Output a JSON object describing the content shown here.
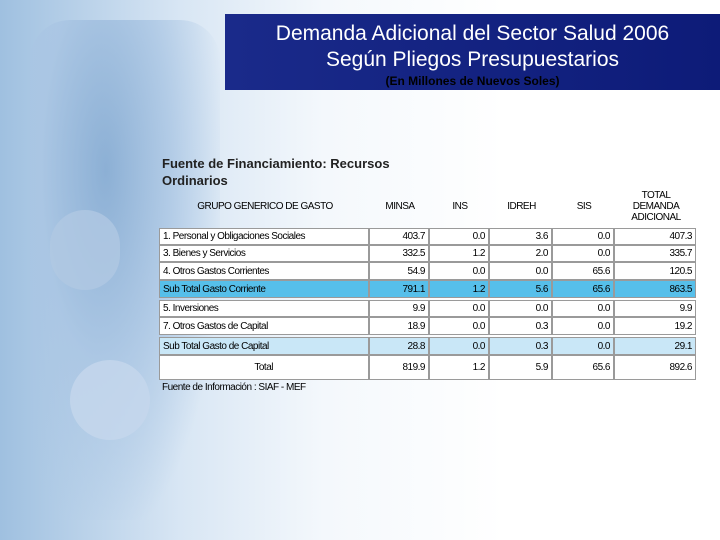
{
  "header": {
    "title_line1": "Demanda Adicional del Sector Salud 2006",
    "title_line2": "Según Pliegos Presupuestarios",
    "subtitle": "(En Millones de Nuevos Soles)"
  },
  "source_heading": "Fuente de Financiamiento: Recursos Ordinarios",
  "table": {
    "columns": [
      "GRUPO GENERICO DE GASTO",
      "MINSA",
      "INS",
      "IDREH",
      "SIS",
      "TOTAL DEMANDA ADICIONAL"
    ],
    "rows": [
      [
        "1. Personal y Obligaciones Sociales",
        "403.7",
        "0.0",
        "3.6",
        "0.0",
        "407.3"
      ],
      [
        "3. Bienes y Servicios",
        "332.5",
        "1.2",
        "2.0",
        "0.0",
        "335.7"
      ],
      [
        "4. Otros Gastos Corrientes",
        "54.9",
        "0.0",
        "0.0",
        "65.6",
        "120.5"
      ],
      [
        "Sub Total Gasto Corriente",
        "791.1",
        "1.2",
        "5.6",
        "65.6",
        "863.5"
      ],
      [
        "5. Inversiones",
        "9.9",
        "0.0",
        "0.0",
        "0.0",
        "9.9"
      ],
      [
        "7. Otros Gastos de Capital",
        "18.9",
        "0.0",
        "0.3",
        "0.0",
        "19.2"
      ],
      [
        "Sub Total Gasto de Capital",
        "28.8",
        "0.0",
        "0.3",
        "0.0",
        "29.1"
      ],
      [
        "Total",
        "819.9",
        "1.2",
        "5.9",
        "65.6",
        "892.6"
      ]
    ]
  },
  "footnote": "Fuente de Información : SIAF - MEF"
}
